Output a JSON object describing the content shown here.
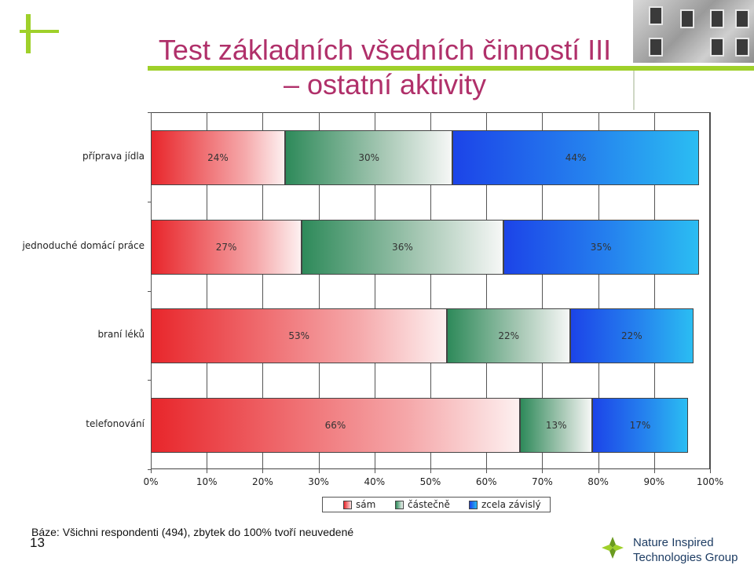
{
  "title_line1": "Test základních všedních činností III",
  "title_line2": "– ostatní aktivity",
  "footnote": "Báze: Všichni respondenti (494), zbytek do 100% tvoří neuvedené",
  "slide_number": "13",
  "brand": {
    "line1": "Nature Inspired",
    "line2": "Technologies Group"
  },
  "colors": {
    "accent_green": "#9fd02a",
    "title": "#b0306a",
    "sam": "#e8262b",
    "castecne": "#2e8a5a",
    "zcela": "#1c44e8"
  },
  "chart_data": {
    "type": "bar",
    "orientation": "horizontal",
    "stacked": true,
    "categories": [
      "příprava jídla",
      "jednoduché domácí práce",
      "braní léků",
      "telefonování"
    ],
    "series": [
      {
        "name": "sám",
        "values": [
          24,
          27,
          53,
          66
        ]
      },
      {
        "name": "částečně",
        "values": [
          30,
          36,
          22,
          13
        ]
      },
      {
        "name": "zcela závislý",
        "values": [
          44,
          35,
          22,
          17
        ]
      }
    ],
    "data_labels": [
      [
        "24%",
        "30%",
        "44%"
      ],
      [
        "27%",
        "36%",
        "35%"
      ],
      [
        "53%",
        "22%",
        "22%"
      ],
      [
        "66%",
        "13%",
        "17%"
      ]
    ],
    "xlim": [
      0,
      100
    ],
    "x_ticks": [
      "0%",
      "10%",
      "20%",
      "30%",
      "40%",
      "50%",
      "60%",
      "70%",
      "80%",
      "90%",
      "100%"
    ],
    "grid": true,
    "legend_position": "bottom"
  }
}
